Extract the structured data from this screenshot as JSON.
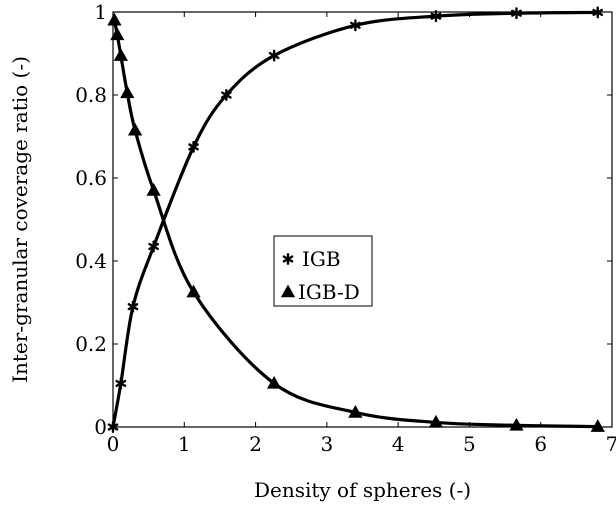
{
  "chart_data": {
    "type": "line",
    "title": "",
    "xlabel": "Density of spheres (-)",
    "ylabel": "Inter-granular coverage ratio (-)",
    "xlim": [
      0,
      7
    ],
    "ylim": [
      0,
      1
    ],
    "xticks": [
      0,
      1,
      2,
      3,
      4,
      5,
      6,
      7
    ],
    "yticks": [
      0,
      0.2,
      0.4,
      0.6,
      0.8,
      1
    ],
    "xtick_labels": [
      "0",
      "1",
      "2",
      "3",
      "4",
      "5",
      "6",
      "7"
    ],
    "ytick_labels": [
      "0",
      "0.2",
      "0.4",
      "0.6",
      "0.8",
      "1"
    ],
    "grid": false,
    "legend_position": "center",
    "series": [
      {
        "name": "IGB",
        "marker": "asterisk",
        "color": "#000000",
        "x": [
          0,
          0.11,
          0.28,
          0.57,
          1.13,
          1.59,
          2.26,
          3.4,
          4.53,
          5.66,
          6.8
        ],
        "y": [
          0,
          0.105,
          0.29,
          0.435,
          0.675,
          0.8,
          0.895,
          0.968,
          0.99,
          0.997,
          0.999
        ]
      },
      {
        "name": "IGB-D",
        "marker": "triangle",
        "color": "#000000",
        "x": [
          0.02,
          0.06,
          0.11,
          0.2,
          0.31,
          0.57,
          1.13,
          2.26,
          3.4,
          4.53,
          5.66,
          6.8
        ],
        "y": [
          0.98,
          0.945,
          0.895,
          0.805,
          0.715,
          0.57,
          0.325,
          0.105,
          0.035,
          0.011,
          0.004,
          0.001
        ]
      }
    ]
  }
}
